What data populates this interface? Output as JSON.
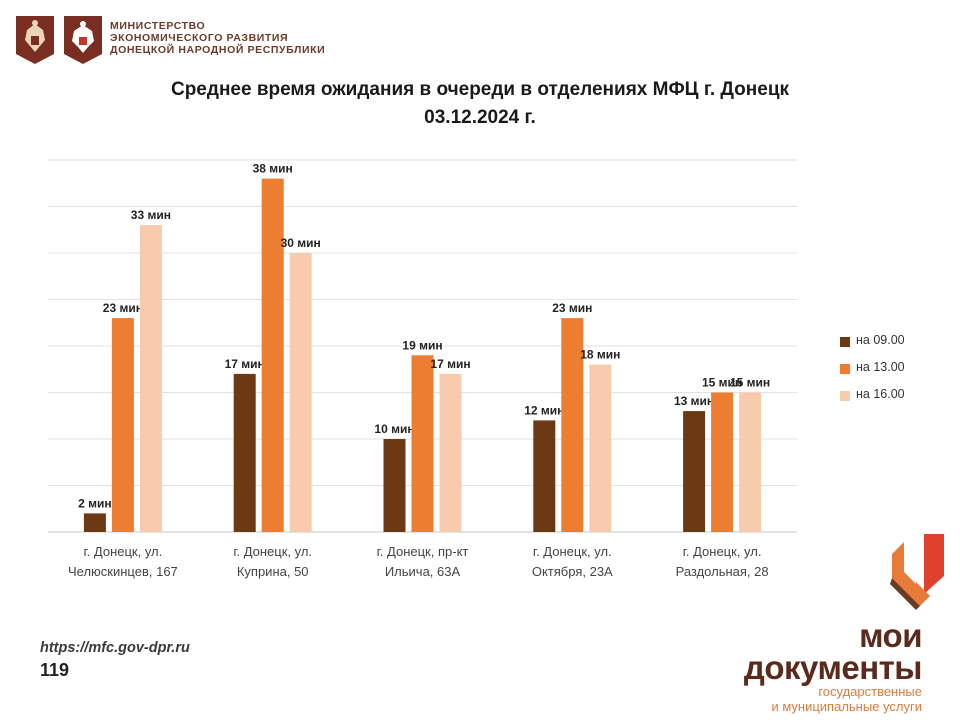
{
  "header": {
    "ministry_lines": [
      "МИНИСТЕРСТВО",
      "ЭКОНОМИЧЕСКОГО РАЗВИТИЯ",
      "ДОНЕЦКОЙ НАРОДНОЙ РЕСПУБЛИКИ"
    ]
  },
  "footer": {
    "url": "https://mfc.gov-dpr.ru",
    "page_number": "119",
    "brand_line1": "мои",
    "brand_line2": "документы",
    "brand_sub1": "государственные",
    "brand_sub2": "и муниципальные услуги"
  },
  "chart_data": {
    "type": "bar",
    "title_lines": [
      "Среднее время ожидания в очереди в отделениях МФЦ г. Донецк",
      "03.12.2024 г."
    ],
    "categories": [
      [
        "г. Донецк, ул.",
        "Челюскинцев, 167"
      ],
      [
        "г. Донецк, ул.",
        "Куприна, 50"
      ],
      [
        "г. Донецк, пр-кт",
        "Ильича, 63А"
      ],
      [
        "г. Донецк, ул.",
        "Октября, 23А"
      ],
      [
        "г. Донецк, ул.",
        "Раздольная, 28"
      ]
    ],
    "series": [
      {
        "name": "на 09.00",
        "color": "#6b3a14",
        "values": [
          2,
          17,
          10,
          12,
          13
        ],
        "labels": [
          "2 мин",
          "17 мин",
          "10 мин",
          "12 мин",
          "13 мин"
        ]
      },
      {
        "name": "на 13.00",
        "color": "#ed7d31",
        "values": [
          23,
          38,
          19,
          23,
          15
        ],
        "labels": [
          "23 мин",
          "38 мин",
          "19 мин",
          "23 мин",
          "15 мин"
        ]
      },
      {
        "name": "на 16.00",
        "color": "#f8cbad",
        "values": [
          33,
          30,
          17,
          18,
          15
        ],
        "labels": [
          "33 мин",
          "30 мин",
          "17 мин",
          "18 мин",
          "15 мин"
        ]
      }
    ],
    "ylim": [
      0,
      40
    ],
    "y_grid_step": 5,
    "grid": true,
    "legend_position": "right"
  }
}
